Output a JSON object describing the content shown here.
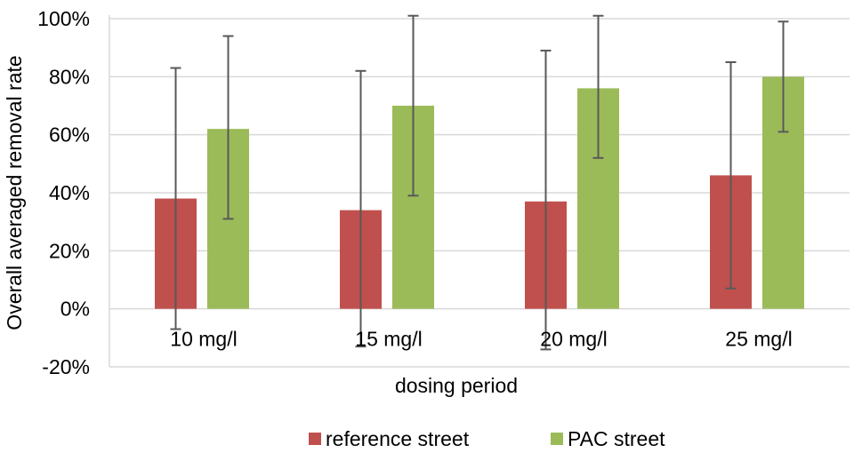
{
  "chart_data": {
    "type": "bar",
    "title": "",
    "xlabel": "dosing period",
    "ylabel": "Overall averaged removal rate",
    "categories": [
      "10 mg/l",
      "15 mg/l",
      "20 mg/l",
      "25 mg/l"
    ],
    "ylim": [
      -20,
      100
    ],
    "yticks": [
      -20,
      0,
      20,
      40,
      60,
      80,
      100
    ],
    "ytick_labels": [
      "-20%",
      "0%",
      "20%",
      "40%",
      "60%",
      "80%",
      "100%"
    ],
    "grid": true,
    "legend_position": "bottom",
    "series": [
      {
        "name": "reference street",
        "color": "#C0504D",
        "values": [
          38,
          34,
          37,
          46
        ],
        "error_low": [
          -7,
          -13,
          -14,
          7
        ],
        "error_high": [
          83,
          82,
          89,
          85
        ]
      },
      {
        "name": "PAC street",
        "color": "#9BBB59",
        "values": [
          62,
          70,
          76,
          80
        ],
        "error_low": [
          31,
          39,
          52,
          61
        ],
        "error_high": [
          94,
          101,
          101,
          99
        ]
      }
    ]
  }
}
